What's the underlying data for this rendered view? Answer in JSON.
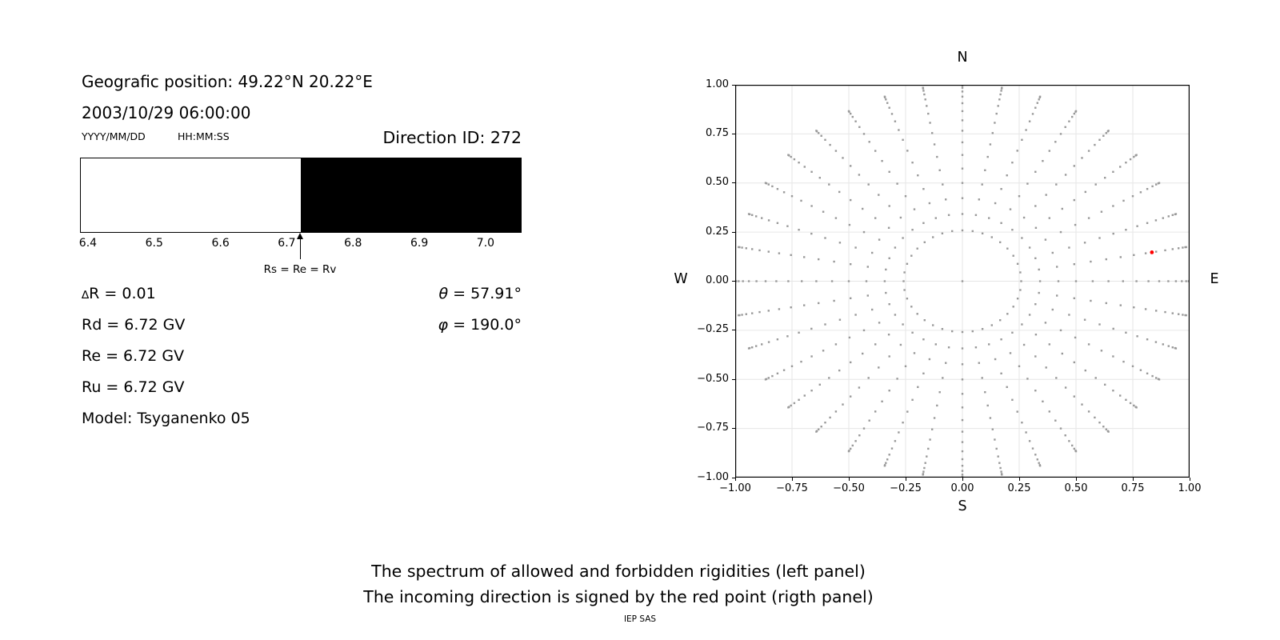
{
  "header": {
    "geographic_position": "Geografic position: 49.22°N 20.22°E",
    "datetime": "2003/10/29 06:00:00",
    "date_format_hint": "YYYY/MM/DD",
    "time_format_hint": "HH:MM:SS",
    "direction_id": "Direction ID: 272"
  },
  "parameters": {
    "delta_r_symbol": "∆",
    "delta_r_text": "R = 0.01",
    "rd": "Rd = 6.72 GV",
    "re": "Re = 6.72 GV",
    "ru": "Ru = 6.72 GV",
    "model": "Model: Tsyganenko 05",
    "theta_symbol": "θ",
    "theta_text": " = 57.91°",
    "phi_symbol": "φ",
    "phi_text": " = 190.0°"
  },
  "captions": {
    "line1": "The spectrum of allowed and forbidden rigidities (left panel)",
    "line2": "The incoming direction is signed by the red point (rigth panel)",
    "credit": "IEP SAS"
  },
  "chart_data": [
    {
      "id": "rigidity_spectrum",
      "type": "area",
      "title": "The spectrum of allowed and forbidden rigidities",
      "xlim": [
        6.388,
        7.052
      ],
      "xticks": [
        6.4,
        6.5,
        6.6,
        6.7,
        6.8,
        6.9,
        7.0
      ],
      "xtick_labels": [
        "6.4",
        "6.5",
        "6.6",
        "6.7",
        "6.8",
        "6.9",
        "7.0"
      ],
      "regions": [
        {
          "name": "allowed",
          "from": 6.388,
          "to": 6.72,
          "color": "#ffffff"
        },
        {
          "name": "forbidden",
          "from": 6.72,
          "to": 7.052,
          "color": "#000000"
        }
      ],
      "boundary": {
        "value": 6.72,
        "label": "Rs = Re = Rv"
      }
    },
    {
      "id": "incoming_direction",
      "type": "scatter",
      "xlim": [
        -1,
        1
      ],
      "ylim": [
        -1,
        1
      ],
      "ticks": [
        -1,
        -0.75,
        -0.5,
        -0.25,
        0,
        0.25,
        0.5,
        0.75,
        1
      ],
      "tick_labels": [
        "−1.00",
        "−0.75",
        "−0.50",
        "−0.25",
        "0.00",
        "0.25",
        "0.50",
        "0.75",
        "1.00"
      ],
      "grid_on": true,
      "grid_color": "#e6e6e6",
      "compass": {
        "top": "N",
        "left": "W",
        "right": "E",
        "bottom": "S"
      },
      "grid_dots": {
        "description": "directions grid: radius = sin(zenith), one ray per azimuth",
        "azimuth_deg_start": 0,
        "azimuth_deg_step": 10,
        "azimuth_count": 36,
        "zenith_deg_min": 15,
        "zenith_deg_max": 90,
        "zenith_deg_step": 5,
        "center_dot": true,
        "marker": "square",
        "dot_size_px": 2.4,
        "color": "#999999"
      },
      "red_point": {
        "theta_deg": 57.91,
        "phi_deg": 190.0,
        "x": 0.834,
        "y": 0.147,
        "radius_px": 2.4,
        "color": "#ff0000"
      }
    }
  ]
}
